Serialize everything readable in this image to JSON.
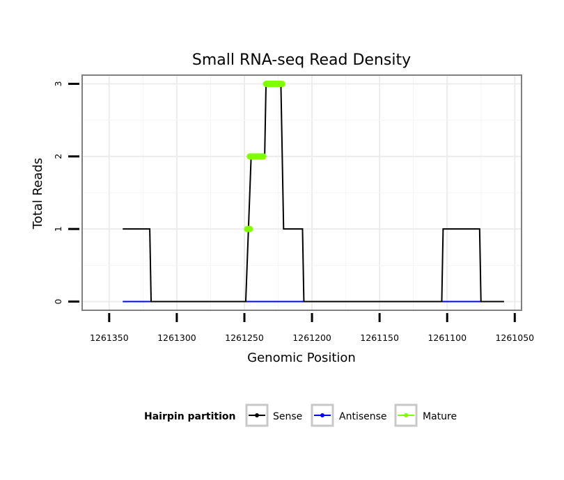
{
  "chart_data": {
    "type": "line",
    "title": "Small RNA-seq Read Density",
    "xlabel": "Genomic Position",
    "ylabel": "Total Reads",
    "x_reversed": true,
    "xlim": [
      1261370,
      1261045
    ],
    "ylim": [
      -0.12,
      3.12
    ],
    "x_ticks": [
      1261350,
      1261300,
      1261250,
      1261200,
      1261150,
      1261100,
      1261050
    ],
    "x_tick_labels": [
      "1261350",
      "1261300",
      "1261250",
      "1261200",
      "1261150",
      "1261100",
      "1261050"
    ],
    "y_ticks": [
      0,
      1,
      2,
      3
    ],
    "y_tick_labels": [
      "0",
      "1",
      "2",
      "3"
    ],
    "grid": true,
    "series": [
      {
        "name": "Sense",
        "color": "#000000",
        "points": [
          [
            1261340,
            1
          ],
          [
            1261320,
            1
          ],
          [
            1261319,
            0
          ],
          [
            1261249,
            0
          ],
          [
            1261247,
            1
          ],
          [
            1261245,
            2
          ],
          [
            1261235,
            2
          ],
          [
            1261234,
            3
          ],
          [
            1261223,
            3
          ],
          [
            1261221,
            1
          ],
          [
            1261207,
            1
          ],
          [
            1261206,
            0
          ],
          [
            1261104,
            0
          ],
          [
            1261103,
            1
          ],
          [
            1261076,
            1
          ],
          [
            1261075,
            0
          ],
          [
            1261058,
            0
          ]
        ]
      },
      {
        "name": "Antisense",
        "color": "#0000ff",
        "points": [
          [
            1261340,
            0
          ],
          [
            1261058,
            0
          ]
        ]
      },
      {
        "name": "Mature",
        "color": "#7fff00",
        "segments": [
          [
            [
              1261248,
              1
            ],
            [
              1261246,
              1
            ]
          ],
          [
            [
              1261246,
              2
            ],
            [
              1261236,
              2
            ]
          ],
          [
            [
              1261234,
              3
            ],
            [
              1261222,
              3
            ]
          ]
        ]
      }
    ],
    "legend": {
      "title": "Hairpin partition",
      "position": "bottom",
      "entries": [
        {
          "label": "Sense",
          "color": "#000000"
        },
        {
          "label": "Antisense",
          "color": "#0000ff"
        },
        {
          "label": "Mature",
          "color": "#7fff00"
        }
      ]
    }
  }
}
